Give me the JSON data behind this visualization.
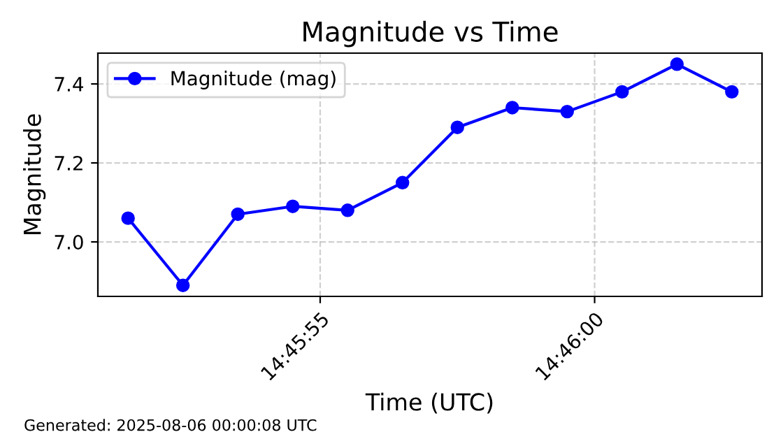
{
  "chart_data": {
    "type": "line",
    "title": "Magnitude vs Time",
    "xlabel": "Time (UTC)",
    "ylabel": "Magnitude",
    "x": [
      14.7643056,
      14.7645833,
      14.7648611,
      14.7651389,
      14.7654167,
      14.7656944,
      14.7659722,
      14.76625,
      14.7665278,
      14.7668056,
      14.7670833,
      14.7673611
    ],
    "series": [
      {
        "name": "Magnitude (mag)",
        "color": "#0000ff",
        "values": [
          7.06,
          6.89,
          7.07,
          7.09,
          7.08,
          7.15,
          7.29,
          7.34,
          7.33,
          7.38,
          7.45,
          7.38
        ]
      }
    ],
    "xlim": [
      14.7641528,
      14.7675139
    ],
    "xticks": [
      {
        "value": 14.7652778,
        "label": "14:45:55"
      },
      {
        "value": 14.7666667,
        "label": "14:46:00"
      }
    ],
    "ylim": [
      6.862,
      7.478
    ],
    "yticks": [
      {
        "value": 7.0,
        "label": "7.0"
      },
      {
        "value": 7.2,
        "label": "7.2"
      },
      {
        "value": 7.4,
        "label": "7.4"
      }
    ],
    "grid": true,
    "legend": "top left",
    "marker": "circle",
    "line_style": "solid",
    "annotations": [
      "Generated: 2025-08-06 00:00:08 UTC"
    ]
  }
}
